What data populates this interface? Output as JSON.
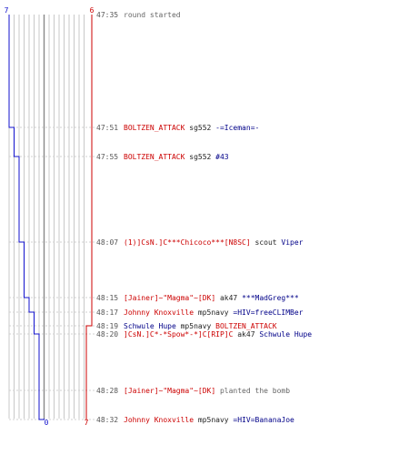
{
  "team_scores": {
    "blue_start": "7",
    "red_start": "6",
    "blue_end": "0",
    "red_end": "7"
  },
  "colors": {
    "blue": "#1010cc",
    "red": "#cc0000",
    "grid": "#c8c8c8",
    "grid_major": "#888888",
    "guide": "#d0d0d0",
    "killer_red": "#cc0000",
    "victim_blue": "#000088"
  },
  "events": [
    {
      "time": "47:35",
      "parts": [
        {
          "t": "round started",
          "c": "gray"
        }
      ]
    },
    {
      "time": "47:51",
      "parts": [
        {
          "t": "BOLTZEN_ATTACK",
          "c": "red"
        },
        {
          "t": " sg552 ",
          "c": "plain"
        },
        {
          "t": "-=Iceman=-",
          "c": "blue"
        }
      ]
    },
    {
      "time": "47:55",
      "parts": [
        {
          "t": "BOLTZEN_ATTACK",
          "c": "red"
        },
        {
          "t": " sg552 ",
          "c": "plain"
        },
        {
          "t": "#43",
          "c": "blue"
        }
      ]
    },
    {
      "time": "48:07",
      "parts": [
        {
          "t": "(1)]CsN.]C***Chicoco***[N8SC]",
          "c": "red"
        },
        {
          "t": " scout ",
          "c": "plain"
        },
        {
          "t": "Viper",
          "c": "blue"
        }
      ]
    },
    {
      "time": "48:15",
      "parts": [
        {
          "t": "[Jainer]~\"Magma\"~[DK]",
          "c": "red"
        },
        {
          "t": " ak47 ",
          "c": "plain"
        },
        {
          "t": "***MadGreg***",
          "c": "blue"
        }
      ]
    },
    {
      "time": "48:17",
      "parts": [
        {
          "t": "Johnny Knoxville",
          "c": "red"
        },
        {
          "t": " mp5navy ",
          "c": "plain"
        },
        {
          "t": "=HIV=freeCLIMBer",
          "c": "blue"
        }
      ]
    },
    {
      "time": "48:19",
      "parts": [
        {
          "t": "Schwule Hupe",
          "c": "blue"
        },
        {
          "t": " mp5navy ",
          "c": "plain"
        },
        {
          "t": "BOLTZEN_ATTACK",
          "c": "red"
        }
      ]
    },
    {
      "time": "48:20",
      "parts": [
        {
          "t": "]CsN.]C*-*Spow*-*]C[RIP]C",
          "c": "red"
        },
        {
          "t": " ak47 ",
          "c": "plain"
        },
        {
          "t": "Schwule Hupe",
          "c": "blue"
        }
      ]
    },
    {
      "time": "48:28",
      "parts": [
        {
          "t": "[Jainer]~\"Magma\"~[DK]",
          "c": "red"
        },
        {
          "t": " planted the bomb",
          "c": "gray"
        }
      ]
    },
    {
      "time": "48:32",
      "parts": [
        {
          "t": "Johnny Knoxville",
          "c": "red"
        },
        {
          "t": " mp5navy ",
          "c": "plain"
        },
        {
          "t": "=HIV=BananaJoe",
          "c": "blue"
        }
      ]
    }
  ],
  "chart_data": {
    "type": "line",
    "title": "",
    "xlabel": "",
    "ylabel": "",
    "x": [
      "47:35",
      "47:51",
      "47:55",
      "48:07",
      "48:15",
      "48:17",
      "48:19",
      "48:20",
      "48:28",
      "48:32"
    ],
    "series": [
      {
        "values": [
          7,
          6,
          5,
          4,
          3,
          2,
          2,
          1,
          1,
          0
        ]
      },
      {
        "values": [
          6,
          6,
          6,
          6,
          6,
          6,
          7,
          7,
          7,
          7
        ]
      }
    ]
  }
}
